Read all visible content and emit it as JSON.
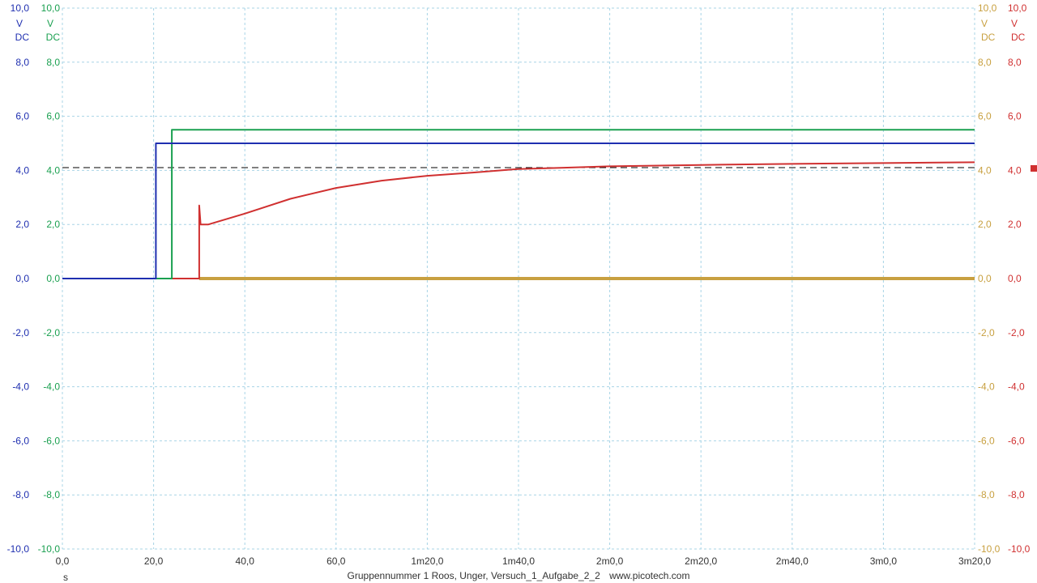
{
  "chart_data": {
    "type": "line",
    "xlabel": "s",
    "x_ticks": [
      "0,0",
      "20,0",
      "40,0",
      "60,0",
      "1m20,0",
      "1m40,0",
      "2m0,0",
      "2m20,0",
      "2m40,0",
      "3m0,0",
      "3m20,0"
    ],
    "xlim": [
      0,
      200
    ],
    "y_ticks": [
      "10,0",
      "8,0",
      "6,0",
      "4,0",
      "2,0",
      "0,0",
      "-2,0",
      "-4,0",
      "-6,0",
      "-8,0",
      "-10,0"
    ],
    "ylim": [
      -10,
      10
    ],
    "grid": true,
    "axes": [
      {
        "side": "left",
        "color": "#1f2fb0",
        "top_label": "10,0",
        "unit": "V",
        "coupling": "DC"
      },
      {
        "side": "left",
        "color": "#1aa050",
        "top_label": "10,0",
        "unit": "V",
        "coupling": "DC"
      },
      {
        "side": "right",
        "color": "#c8a040",
        "top_label": "10,0",
        "unit": "V",
        "coupling": "DC"
      },
      {
        "side": "right",
        "color": "#d03030",
        "top_label": "10,0",
        "unit": "V",
        "coupling": "DC"
      }
    ],
    "threshold": {
      "value": 4.1,
      "style": "dashed",
      "color": "#000000"
    },
    "series": [
      {
        "color": "#1f2fb0",
        "points": [
          [
            0,
            0
          ],
          [
            20.5,
            0
          ],
          [
            20.5,
            5.0
          ],
          [
            200,
            5.0
          ]
        ]
      },
      {
        "color": "#1aa050",
        "points": [
          [
            0,
            0
          ],
          [
            24,
            0
          ],
          [
            24,
            5.5
          ],
          [
            200,
            5.5
          ]
        ]
      },
      {
        "color": "#d03030",
        "points": [
          [
            0,
            0
          ],
          [
            30,
            0
          ],
          [
            30,
            2.7
          ],
          [
            30.3,
            2.0
          ],
          [
            32,
            2.0
          ],
          [
            40,
            2.4
          ],
          [
            50,
            2.95
          ],
          [
            60,
            3.35
          ],
          [
            70,
            3.62
          ],
          [
            80,
            3.8
          ],
          [
            90,
            3.92
          ],
          [
            100,
            4.05
          ],
          [
            110,
            4.1
          ],
          [
            120,
            4.15
          ],
          [
            140,
            4.2
          ],
          [
            160,
            4.24
          ],
          [
            180,
            4.27
          ],
          [
            200,
            4.3
          ]
        ]
      },
      {
        "color": "#c8a040",
        "points": [
          [
            30,
            0
          ],
          [
            200,
            0
          ]
        ],
        "noise_amplitude": 0.12
      }
    ]
  },
  "footer": {
    "title": "Gruppennummer 1 Roos, Unger, Versuch_1_Aufgabe_2_2",
    "site": "www.picotech.com"
  }
}
